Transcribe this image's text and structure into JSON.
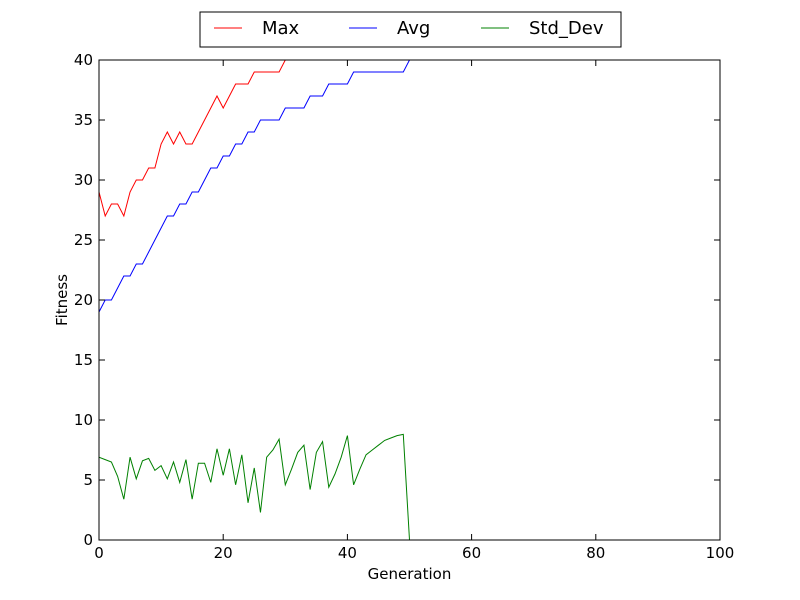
{
  "chart_data": {
    "type": "line",
    "title": "",
    "xlabel": "Generation",
    "ylabel": "Fitness",
    "xlim": [
      0,
      100
    ],
    "ylim": [
      0,
      40
    ],
    "xticks": [
      0,
      20,
      40,
      60,
      80,
      100
    ],
    "yticks": [
      0,
      5,
      10,
      15,
      20,
      25,
      30,
      35,
      40
    ],
    "grid": false,
    "legend_position": "top-center",
    "series": [
      {
        "name": "Max",
        "color": "#ff0000",
        "points": [
          [
            0,
            29
          ],
          [
            1,
            27
          ],
          [
            2,
            28
          ],
          [
            3,
            28
          ],
          [
            4,
            27
          ],
          [
            5,
            29
          ],
          [
            6,
            30
          ],
          [
            7,
            30
          ],
          [
            8,
            31
          ],
          [
            9,
            31
          ],
          [
            10,
            33
          ],
          [
            11,
            34
          ],
          [
            12,
            33
          ],
          [
            13,
            34
          ],
          [
            14,
            33
          ],
          [
            15,
            33
          ],
          [
            16,
            34
          ],
          [
            17,
            35
          ],
          [
            18,
            36
          ],
          [
            19,
            37
          ],
          [
            20,
            36
          ],
          [
            21,
            37
          ],
          [
            22,
            38
          ],
          [
            23,
            38
          ],
          [
            24,
            38
          ],
          [
            25,
            39
          ],
          [
            26,
            39
          ],
          [
            27,
            39
          ],
          [
            28,
            39
          ],
          [
            29,
            39
          ],
          [
            30,
            40
          ],
          [
            100,
            40
          ]
        ]
      },
      {
        "name": "Avg",
        "color": "#0000ff",
        "points": [
          [
            0,
            19
          ],
          [
            1,
            20
          ],
          [
            2,
            20
          ],
          [
            3,
            21
          ],
          [
            4,
            22
          ],
          [
            5,
            22
          ],
          [
            6,
            23
          ],
          [
            7,
            23
          ],
          [
            8,
            24
          ],
          [
            9,
            25
          ],
          [
            10,
            26
          ],
          [
            11,
            27
          ],
          [
            12,
            27
          ],
          [
            13,
            28
          ],
          [
            14,
            28
          ],
          [
            15,
            29
          ],
          [
            16,
            29
          ],
          [
            17,
            30
          ],
          [
            18,
            31
          ],
          [
            19,
            31
          ],
          [
            20,
            32
          ],
          [
            21,
            32
          ],
          [
            22,
            33
          ],
          [
            23,
            33
          ],
          [
            24,
            34
          ],
          [
            25,
            34
          ],
          [
            26,
            35
          ],
          [
            27,
            35
          ],
          [
            28,
            35
          ],
          [
            29,
            35
          ],
          [
            30,
            36
          ],
          [
            31,
            36
          ],
          [
            32,
            36
          ],
          [
            33,
            36
          ],
          [
            34,
            37
          ],
          [
            35,
            37
          ],
          [
            36,
            37
          ],
          [
            37,
            38
          ],
          [
            38,
            38
          ],
          [
            39,
            38
          ],
          [
            40,
            38
          ],
          [
            41,
            39
          ],
          [
            42,
            39
          ],
          [
            43,
            39
          ],
          [
            44,
            39
          ],
          [
            45,
            39
          ],
          [
            46,
            39
          ],
          [
            47,
            39
          ],
          [
            48,
            39
          ],
          [
            49,
            39
          ],
          [
            50,
            40
          ],
          [
            100,
            40
          ]
        ]
      },
      {
        "name": "Std_Dev",
        "color": "#008000",
        "points": [
          [
            0,
            6.9
          ],
          [
            1,
            6.7
          ],
          [
            2,
            6.5
          ],
          [
            3,
            5.3
          ],
          [
            4,
            3.4
          ],
          [
            5,
            6.9
          ],
          [
            6,
            5.1
          ],
          [
            7,
            6.6
          ],
          [
            8,
            6.8
          ],
          [
            9,
            5.8
          ],
          [
            10,
            6.2
          ],
          [
            11,
            5.1
          ],
          [
            12,
            6.5
          ],
          [
            13,
            4.8
          ],
          [
            14,
            6.7
          ],
          [
            15,
            3.4
          ],
          [
            16,
            6.4
          ],
          [
            17,
            6.4
          ],
          [
            18,
            4.8
          ],
          [
            19,
            7.6
          ],
          [
            20,
            5.4
          ],
          [
            21,
            7.6
          ],
          [
            22,
            4.6
          ],
          [
            23,
            7.1
          ],
          [
            24,
            3.1
          ],
          [
            25,
            6.0
          ],
          [
            26,
            2.3
          ],
          [
            27,
            6.9
          ],
          [
            28,
            7.5
          ],
          [
            29,
            8.4
          ],
          [
            30,
            4.6
          ],
          [
            31,
            5.9
          ],
          [
            32,
            7.3
          ],
          [
            33,
            7.9
          ],
          [
            34,
            4.2
          ],
          [
            35,
            7.3
          ],
          [
            36,
            8.2
          ],
          [
            37,
            4.4
          ],
          [
            38,
            5.5
          ],
          [
            39,
            6.9
          ],
          [
            40,
            8.7
          ],
          [
            41,
            4.6
          ],
          [
            42,
            5.9
          ],
          [
            43,
            7.1
          ],
          [
            44,
            7.5
          ],
          [
            45,
            7.9
          ],
          [
            46,
            8.3
          ],
          [
            47,
            8.5
          ],
          [
            48,
            8.7
          ],
          [
            49,
            8.8
          ],
          [
            50,
            0
          ],
          [
            100,
            0
          ]
        ]
      }
    ]
  }
}
